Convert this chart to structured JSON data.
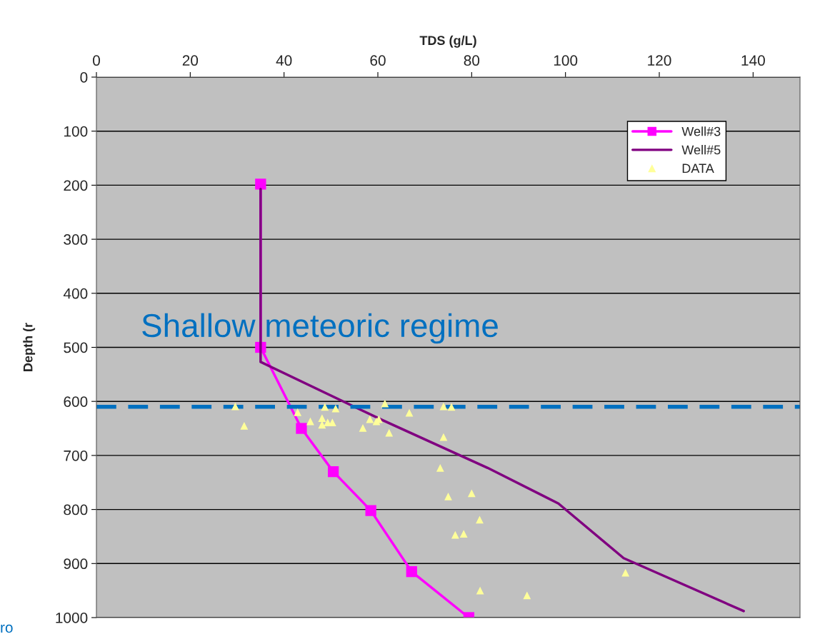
{
  "chart_data": {
    "type": "line",
    "xlabel": "TDS (g/L)",
    "ylabel": "Depth (r",
    "xlim": [
      0,
      150
    ],
    "xticks": [
      0,
      20,
      40,
      60,
      80,
      100,
      120,
      140
    ],
    "ylim": [
      1000,
      0
    ],
    "yticks": [
      0,
      100,
      200,
      300,
      400,
      500,
      600,
      700,
      800,
      900,
      1000
    ],
    "grid": "y",
    "legend": "top right",
    "series": [
      {
        "name": "Well#3",
        "color": "#ff00ff",
        "marker": "square",
        "x": [
          35.0,
          35.0,
          43.7,
          50.5,
          58.5,
          67.2,
          79.4
        ],
        "values": [
          198,
          500,
          650,
          730,
          802,
          915,
          1000
        ]
      },
      {
        "name": "Well#5",
        "color": "#800080",
        "marker": "none",
        "x": [
          35.0,
          35.0,
          60.8,
          83.4,
          98.5,
          112.4,
          138.0
        ],
        "values": [
          207,
          527,
          634,
          723,
          789,
          890,
          988
        ]
      },
      {
        "name": "DATA",
        "type": "scatter",
        "color": "#ffff99",
        "marker": "triangle",
        "x": [
          29.6,
          31.5,
          42.9,
          45.6,
          48.1,
          48.1,
          48.7,
          49.3,
          50.3,
          51.0,
          56.8,
          58.3,
          59.7,
          60.2,
          61.5,
          62.4,
          66.7,
          74.0,
          75.7,
          74.0,
          73.3,
          75.0,
          80.0,
          81.7,
          76.5,
          78.3,
          112.8,
          81.8,
          91.8
        ],
        "values": [
          609,
          645,
          620,
          637,
          631,
          643,
          610,
          639,
          639,
          613,
          649,
          633,
          637,
          633,
          604,
          658,
          621,
          609,
          610,
          666,
          723,
          776,
          770,
          819,
          847,
          845,
          917,
          950,
          959
        ]
      }
    ],
    "ref_lines": [
      {
        "axis": "y",
        "value": 610,
        "color": "#0070c0",
        "line_style": "dashed"
      }
    ],
    "annotations": [
      "Shallow meteoric regime",
      "ro"
    ]
  }
}
